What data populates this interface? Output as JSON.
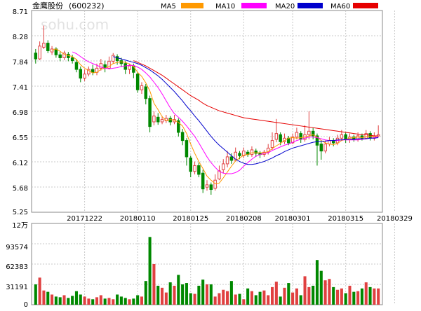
{
  "header": {
    "stock_name": "金鹰股份",
    "stock_code": "(600232)",
    "watermark": "sohu.com"
  },
  "legend": [
    {
      "label": "MA5",
      "color": "#ff9900"
    },
    {
      "label": "MA10",
      "color": "#ff00ff"
    },
    {
      "label": "MA20",
      "color": "#0000cc"
    },
    {
      "label": "MA60",
      "color": "#e60000"
    }
  ],
  "colors": {
    "up": "#e04040",
    "down": "#008800",
    "grid": "#c8c8c8",
    "frame": "#888888"
  },
  "chart_data": [
    {
      "type": "candlestick",
      "y_ticks": [
        "8.71",
        "8.28",
        "7.84",
        "7.41",
        "6.98",
        "6.55",
        "6.12",
        "5.68",
        "5.25"
      ],
      "ylim": [
        5.25,
        8.71
      ],
      "x_ticks": [
        {
          "label": "20171222",
          "index": 12
        },
        {
          "label": "20180110",
          "index": 25
        },
        {
          "label": "20180125",
          "index": 38
        },
        {
          "label": "20180208",
          "index": 51
        },
        {
          "label": "20180301",
          "index": 63
        },
        {
          "label": "20180315",
          "index": 76
        },
        {
          "label": "20180329",
          "index": 88
        }
      ],
      "candles": [
        [
          7.98,
          7.88,
          8.05,
          7.8
        ],
        [
          7.88,
          8.1,
          8.18,
          7.86
        ],
        [
          8.08,
          8.15,
          8.45,
          8.05
        ],
        [
          8.15,
          8.02,
          8.2,
          7.98
        ],
        [
          8.0,
          8.05,
          8.1,
          7.95
        ],
        [
          8.05,
          7.95,
          8.08,
          7.9
        ],
        [
          7.95,
          7.9,
          8.0,
          7.84
        ],
        [
          7.9,
          7.98,
          8.02,
          7.86
        ],
        [
          7.96,
          7.9,
          8.0,
          7.84
        ],
        [
          7.9,
          7.85,
          7.95,
          7.8
        ],
        [
          7.82,
          7.7,
          7.88,
          7.65
        ],
        [
          7.7,
          7.55,
          7.75,
          7.48
        ],
        [
          7.55,
          7.62,
          7.7,
          7.5
        ],
        [
          7.62,
          7.7,
          7.75,
          7.58
        ],
        [
          7.7,
          7.65,
          7.78,
          7.6
        ],
        [
          7.65,
          7.72,
          7.8,
          7.6
        ],
        [
          7.72,
          7.8,
          7.88,
          7.68
        ],
        [
          7.78,
          7.72,
          7.85,
          7.65
        ],
        [
          7.72,
          7.84,
          7.92,
          7.7
        ],
        [
          7.84,
          7.94,
          7.98,
          7.8
        ],
        [
          7.92,
          7.85,
          7.96,
          7.78
        ],
        [
          7.85,
          7.8,
          7.9,
          7.74
        ],
        [
          7.8,
          7.7,
          7.84,
          7.62
        ],
        [
          7.7,
          7.76,
          7.8,
          7.62
        ],
        [
          7.75,
          7.65,
          7.8,
          7.55
        ],
        [
          7.62,
          7.35,
          7.66,
          7.3
        ],
        [
          7.35,
          7.42,
          7.48,
          7.28
        ],
        [
          7.4,
          7.2,
          7.45,
          7.1
        ],
        [
          7.2,
          6.72,
          7.25,
          6.62
        ],
        [
          6.8,
          6.9,
          6.98,
          6.74
        ],
        [
          6.88,
          6.8,
          6.95,
          6.75
        ],
        [
          6.8,
          6.84,
          6.9,
          6.76
        ],
        [
          6.82,
          6.86,
          6.92,
          6.78
        ],
        [
          6.86,
          6.8,
          6.9,
          6.74
        ],
        [
          6.8,
          6.84,
          6.92,
          6.76
        ],
        [
          6.82,
          6.62,
          6.86,
          6.55
        ],
        [
          6.62,
          6.48,
          6.68,
          6.4
        ],
        [
          6.48,
          6.2,
          6.52,
          6.05
        ],
        [
          6.18,
          5.95,
          6.22,
          5.85
        ],
        [
          5.95,
          6.05,
          6.12,
          5.9
        ],
        [
          6.05,
          5.9,
          6.1,
          5.85
        ],
        [
          5.92,
          5.65,
          5.98,
          5.58
        ],
        [
          5.68,
          5.72,
          5.8,
          5.62
        ],
        [
          5.72,
          5.64,
          5.76,
          5.55
        ],
        [
          5.66,
          5.8,
          5.9,
          5.62
        ],
        [
          5.82,
          5.96,
          6.05,
          5.8
        ],
        [
          5.98,
          6.08,
          6.16,
          5.92
        ],
        [
          6.08,
          6.2,
          6.3,
          6.02
        ],
        [
          6.2,
          6.14,
          6.26,
          6.08
        ],
        [
          6.14,
          6.28,
          6.36,
          6.12
        ],
        [
          6.26,
          6.22,
          6.3,
          6.16
        ],
        [
          6.22,
          6.3,
          6.36,
          6.18
        ],
        [
          6.28,
          6.24,
          6.32,
          6.2
        ],
        [
          6.24,
          6.32,
          6.38,
          6.2
        ],
        [
          6.3,
          6.26,
          6.34,
          6.2
        ],
        [
          6.26,
          6.24,
          6.3,
          6.18
        ],
        [
          6.24,
          6.28,
          6.32,
          6.2
        ],
        [
          6.28,
          6.35,
          6.42,
          6.24
        ],
        [
          6.36,
          6.48,
          6.62,
          6.32
        ],
        [
          6.5,
          6.6,
          6.85,
          6.45
        ],
        [
          6.58,
          6.46,
          6.62,
          6.4
        ],
        [
          6.46,
          6.52,
          6.6,
          6.42
        ],
        [
          6.52,
          6.44,
          6.56,
          6.4
        ],
        [
          6.44,
          6.54,
          6.6,
          6.42
        ],
        [
          6.54,
          6.62,
          6.7,
          6.5
        ],
        [
          6.6,
          6.5,
          6.64,
          6.44
        ],
        [
          6.5,
          6.58,
          6.74,
          6.46
        ],
        [
          6.58,
          6.64,
          6.98,
          6.5
        ],
        [
          6.64,
          6.56,
          6.7,
          6.5
        ],
        [
          6.56,
          6.4,
          6.6,
          6.05
        ],
        [
          6.42,
          6.3,
          6.48,
          6.15
        ],
        [
          6.3,
          6.42,
          6.48,
          6.26
        ],
        [
          6.42,
          6.48,
          6.54,
          6.38
        ],
        [
          6.48,
          6.44,
          6.52,
          6.38
        ],
        [
          6.44,
          6.52,
          6.58,
          6.4
        ],
        [
          6.52,
          6.58,
          6.66,
          6.48
        ],
        [
          6.58,
          6.5,
          6.62,
          6.44
        ],
        [
          6.5,
          6.54,
          6.6,
          6.44
        ],
        [
          6.54,
          6.5,
          6.58,
          6.46
        ],
        [
          6.5,
          6.56,
          6.62,
          6.46
        ],
        [
          6.56,
          6.52,
          6.6,
          6.48
        ],
        [
          6.52,
          6.6,
          6.66,
          6.5
        ],
        [
          6.6,
          6.52,
          6.64,
          6.48
        ],
        [
          6.52,
          6.56,
          6.62,
          6.48
        ],
        [
          6.56,
          6.58,
          6.74,
          6.54
        ]
      ],
      "ma5": [
        null,
        null,
        null,
        null,
        8.03,
        8.05,
        8.01,
        7.96,
        7.94,
        7.92,
        7.87,
        7.78,
        7.72,
        7.68,
        7.64,
        7.65,
        7.7,
        7.72,
        7.75,
        7.8,
        7.82,
        7.83,
        7.82,
        7.79,
        7.75,
        7.65,
        7.58,
        7.47,
        7.33,
        7.12,
        7.01,
        6.89,
        6.82,
        6.84,
        6.83,
        6.79,
        6.73,
        6.6,
        6.42,
        6.26,
        6.12,
        6.0,
        5.87,
        5.8,
        5.74,
        5.75,
        5.84,
        5.94,
        6.04,
        6.13,
        6.18,
        6.23,
        6.24,
        6.27,
        6.27,
        6.27,
        6.27,
        6.29,
        6.34,
        6.39,
        6.43,
        6.48,
        6.52,
        6.53,
        6.52,
        6.53,
        6.54,
        6.56,
        6.58,
        6.54,
        6.48,
        6.44,
        6.42,
        6.41,
        6.43,
        6.48,
        6.5,
        6.52,
        6.53,
        6.54,
        6.53,
        6.55,
        6.55,
        6.55,
        6.56
      ],
      "ma10": [
        null,
        null,
        null,
        null,
        null,
        null,
        null,
        null,
        null,
        8.0,
        7.97,
        7.92,
        7.87,
        7.83,
        7.8,
        7.77,
        7.74,
        7.72,
        7.71,
        7.72,
        7.73,
        7.75,
        7.76,
        7.77,
        7.77,
        7.74,
        7.7,
        7.64,
        7.57,
        7.48,
        7.39,
        7.28,
        7.16,
        7.04,
        6.94,
        6.88,
        6.81,
        6.73,
        6.64,
        6.55,
        6.44,
        6.32,
        6.2,
        6.1,
        6.02,
        5.95,
        5.92,
        5.91,
        5.91,
        5.93,
        5.97,
        6.04,
        6.1,
        6.16,
        6.21,
        6.24,
        6.26,
        6.27,
        6.31,
        6.34,
        6.37,
        6.4,
        6.42,
        6.45,
        6.48,
        6.5,
        6.52,
        6.54,
        6.54,
        6.53,
        6.51,
        6.49,
        6.48,
        6.48,
        6.48,
        6.49,
        6.49,
        6.49,
        6.49,
        6.49,
        6.5,
        6.51,
        6.52,
        6.53,
        6.54
      ],
      "ma20": [
        null,
        null,
        null,
        null,
        null,
        null,
        null,
        null,
        null,
        null,
        null,
        null,
        null,
        null,
        null,
        null,
        null,
        null,
        null,
        7.92,
        7.9,
        7.88,
        7.86,
        7.84,
        7.82,
        7.8,
        7.77,
        7.73,
        7.69,
        7.64,
        7.59,
        7.53,
        7.46,
        7.39,
        7.32,
        7.24,
        7.16,
        7.07,
        6.99,
        6.9,
        6.82,
        6.73,
        6.64,
        6.55,
        6.47,
        6.4,
        6.34,
        6.28,
        6.22,
        6.16,
        6.12,
        6.09,
        6.07,
        6.07,
        6.08,
        6.1,
        6.12,
        6.15,
        6.18,
        6.22,
        6.25,
        6.29,
        6.32,
        6.35,
        6.37,
        6.39,
        6.41,
        6.43,
        6.45,
        6.46,
        6.47,
        6.47,
        6.48,
        6.48,
        6.49,
        6.49,
        6.5,
        6.5,
        6.5,
        6.51,
        6.51,
        6.51,
        6.52,
        6.52,
        6.53
      ],
      "ma60": [
        null,
        null,
        null,
        null,
        null,
        null,
        null,
        null,
        null,
        null,
        null,
        null,
        null,
        null,
        null,
        null,
        null,
        null,
        null,
        null,
        null,
        null,
        null,
        null,
        7.85,
        7.82,
        7.79,
        7.76,
        7.72,
        7.68,
        7.64,
        7.6,
        7.55,
        7.5,
        7.45,
        7.4,
        7.35,
        7.3,
        7.25,
        7.21,
        7.17,
        7.12,
        7.08,
        7.05,
        7.02,
        6.99,
        6.97,
        6.95,
        6.93,
        6.91,
        6.89,
        6.87,
        6.86,
        6.85,
        6.84,
        6.83,
        6.82,
        6.81,
        6.8,
        6.79,
        6.78,
        6.77,
        6.76,
        6.75,
        6.74,
        6.73,
        6.72,
        6.71,
        6.7,
        6.69,
        6.68,
        6.67,
        6.66,
        6.65,
        6.64,
        6.63,
        6.62,
        6.61,
        6.6,
        6.59,
        6.58,
        6.58,
        6.57,
        6.56,
        6.56
      ]
    },
    {
      "type": "bar",
      "y_ticks": [
        "12万",
        "93574",
        "62383",
        "31191",
        "0"
      ],
      "ylim": [
        0,
        120000
      ],
      "volumes": [
        30000,
        40000,
        21000,
        19000,
        15000,
        12000,
        11000,
        14000,
        10000,
        13000,
        20000,
        15000,
        12000,
        9000,
        8000,
        11000,
        14000,
        9000,
        10000,
        8000,
        15000,
        12000,
        10000,
        8000,
        9000,
        14000,
        12000,
        35000,
        100000,
        60000,
        28000,
        25000,
        18000,
        33000,
        28000,
        44000,
        30000,
        32000,
        17000,
        16000,
        28000,
        37000,
        30000,
        30000,
        12000,
        17000,
        22000,
        20000,
        35000,
        15000,
        16000,
        8000,
        24000,
        20000,
        14000,
        19000,
        21000,
        14000,
        26000,
        34000,
        12000,
        25000,
        32000,
        18000,
        24000,
        14000,
        42000,
        26000,
        28000,
        66000,
        50000,
        36000,
        38000,
        26000,
        22000,
        24000,
        17000,
        28000,
        19000,
        20000,
        24000,
        33000,
        26000,
        24000,
        24000
      ],
      "volume_up": [
        0,
        1,
        1,
        0,
        1,
        0,
        0,
        1,
        0,
        0,
        0,
        0,
        1,
        1,
        0,
        1,
        1,
        0,
        1,
        1,
        0,
        0,
        0,
        1,
        0,
        0,
        1,
        0,
        0,
        1,
        0,
        1,
        1,
        0,
        1,
        0,
        0,
        0,
        0,
        1,
        0,
        0,
        1,
        0,
        1,
        1,
        1,
        1,
        0,
        1,
        0,
        1,
        0,
        1,
        0,
        0,
        1,
        1,
        1,
        1,
        0,
        1,
        0,
        1,
        1,
        0,
        1,
        1,
        0,
        0,
        0,
        1,
        1,
        0,
        1,
        1,
        0,
        1,
        0,
        1,
        0,
        1,
        0,
        1,
        1
      ]
    }
  ]
}
